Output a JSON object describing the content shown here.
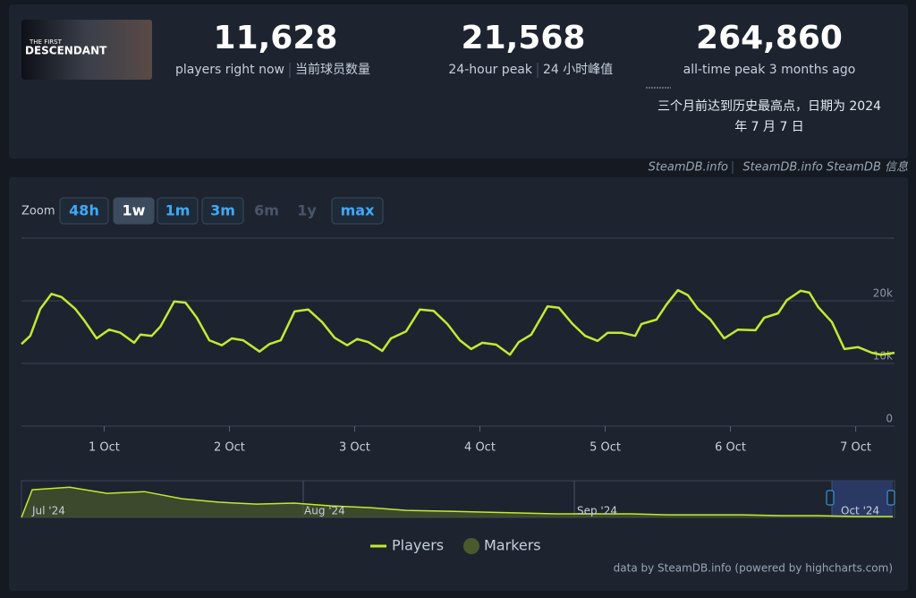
{
  "header": {
    "image_title": [
      "THE FIRST",
      "DESCENDANT"
    ],
    "stats": [
      {
        "number": "11,628",
        "label": "players right now",
        "label_zh": "当前球员数量"
      },
      {
        "number": "21,568",
        "label": "24-hour peak",
        "label_zh": "24 小时峰值"
      },
      {
        "number": "264,860",
        "label": "all-time peak 3 months ago",
        "note_zh": [
          "三个月前达到历史最高点，日期为 2024",
          "年 7 月 7 日"
        ]
      }
    ],
    "credits": [
      "SteamDB.info",
      "SteamDB.info SteamDB 信息"
    ]
  },
  "zoom": {
    "label": "Zoom",
    "buttons": [
      {
        "text": "48h",
        "state": "enabled"
      },
      {
        "text": "1w",
        "state": "active"
      },
      {
        "text": "1m",
        "state": "enabled"
      },
      {
        "text": "3m",
        "state": "enabled"
      },
      {
        "text": "6m",
        "state": "disabled"
      },
      {
        "text": "1y",
        "state": "disabled"
      },
      {
        "text": "max",
        "state": "enabled"
      }
    ]
  },
  "chart_data": {
    "type": "line",
    "x": [
      0.34,
      0.41,
      0.49,
      0.58,
      0.66,
      0.77,
      0.84,
      0.94,
      1.04,
      1.13,
      1.24,
      1.29,
      1.38,
      1.45,
      1.56,
      1.65,
      1.74,
      1.84,
      1.94,
      2.02,
      2.11,
      2.24,
      2.32,
      2.41,
      2.52,
      2.63,
      2.74,
      2.84,
      2.94,
      3.02,
      3.11,
      3.22,
      3.29,
      3.41,
      3.52,
      3.63,
      3.74,
      3.84,
      3.93,
      4.02,
      4.13,
      4.24,
      4.31,
      4.41,
      4.54,
      4.63,
      4.74,
      4.84,
      4.94,
      5.02,
      5.13,
      5.24,
      5.29,
      5.41,
      5.49,
      5.58,
      5.66,
      5.74,
      5.84,
      5.95,
      6.06,
      6.2,
      6.27,
      6.38,
      6.45,
      6.56,
      6.63,
      6.7,
      6.81,
      6.91,
      7.02,
      7.13,
      7.2,
      7.31
    ],
    "series": [
      {
        "name": "Players",
        "color": "#c3ea31",
        "values": [
          13100,
          14400,
          18700,
          21100,
          20600,
          18700,
          16900,
          14000,
          15400,
          14900,
          13300,
          14600,
          14400,
          15900,
          19900,
          19700,
          17300,
          13700,
          12900,
          14000,
          13700,
          11900,
          13100,
          13700,
          18300,
          18600,
          16600,
          14100,
          12900,
          13900,
          13400,
          12000,
          14000,
          15100,
          18600,
          18400,
          16300,
          13700,
          12300,
          13300,
          13000,
          11400,
          13400,
          14600,
          19100,
          18900,
          16300,
          14400,
          13600,
          14900,
          14900,
          14400,
          16300,
          17000,
          19400,
          21700,
          20900,
          18700,
          17000,
          14000,
          15400,
          15300,
          17300,
          18000,
          20100,
          21600,
          21300,
          19000,
          16600,
          12300,
          12600,
          11700,
          11400,
          11700
        ]
      }
    ],
    "extra_legend": [
      {
        "name": "Markers",
        "color": "#4b5a2b"
      }
    ],
    "xlim": [
      0.34,
      7.31
    ],
    "xticks": [
      {
        "value": 1,
        "label": "1 Oct"
      },
      {
        "value": 2,
        "label": "2 Oct"
      },
      {
        "value": 3,
        "label": "3 Oct"
      },
      {
        "value": 4,
        "label": "4 Oct"
      },
      {
        "value": 5,
        "label": "5 Oct"
      },
      {
        "value": 6,
        "label": "6 Oct"
      },
      {
        "value": 7,
        "label": "7 Oct"
      }
    ],
    "ylim": [
      0,
      30000
    ],
    "yticks": [
      0,
      {
        "value": 10000,
        "label": "10k"
      },
      {
        "value": 20000,
        "label": "20k"
      }
    ],
    "grid": true,
    "navigator": {
      "labels": [
        "Jul '24",
        "Aug '24",
        "Sep '24",
        "Oct '24"
      ],
      "ylim": [
        0,
        280000
      ],
      "values": [
        211000,
        231000,
        184000,
        197000,
        143000,
        116000,
        102000,
        109000,
        88000,
        75000,
        54000,
        48000,
        41000,
        34000,
        27000,
        27000,
        27000,
        20000,
        20000,
        20000,
        14000,
        14000,
        7000,
        7000
      ]
    },
    "credit": "data by SteamDB.info (powered by highcharts.com)"
  }
}
